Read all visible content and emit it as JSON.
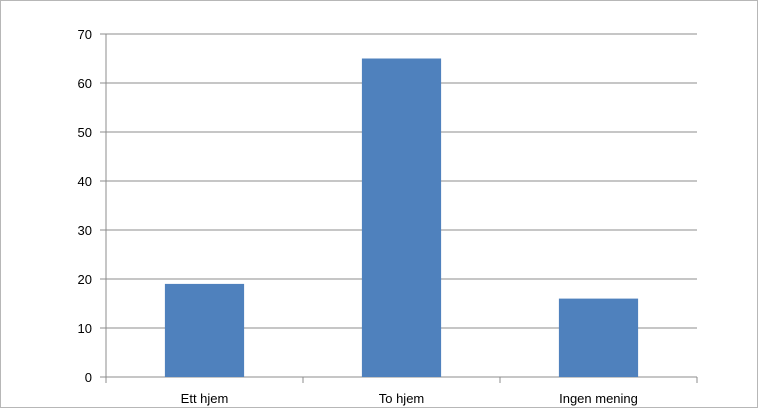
{
  "chart_data": {
    "type": "bar",
    "title": "",
    "xlabel": "",
    "ylabel": "",
    "categories": [
      "Ett hjem",
      "To hjem",
      "Ingen mening"
    ],
    "values": [
      19,
      65,
      16
    ],
    "ylim": [
      0,
      70
    ],
    "yticks": [
      "0",
      "10",
      "20",
      "30",
      "40",
      "50",
      "60",
      "70"
    ],
    "grid": true,
    "legend": "none",
    "colors": {
      "bar": "#4f81bd",
      "grid": "#8c8c8c",
      "axis": "#8c8c8c"
    }
  }
}
